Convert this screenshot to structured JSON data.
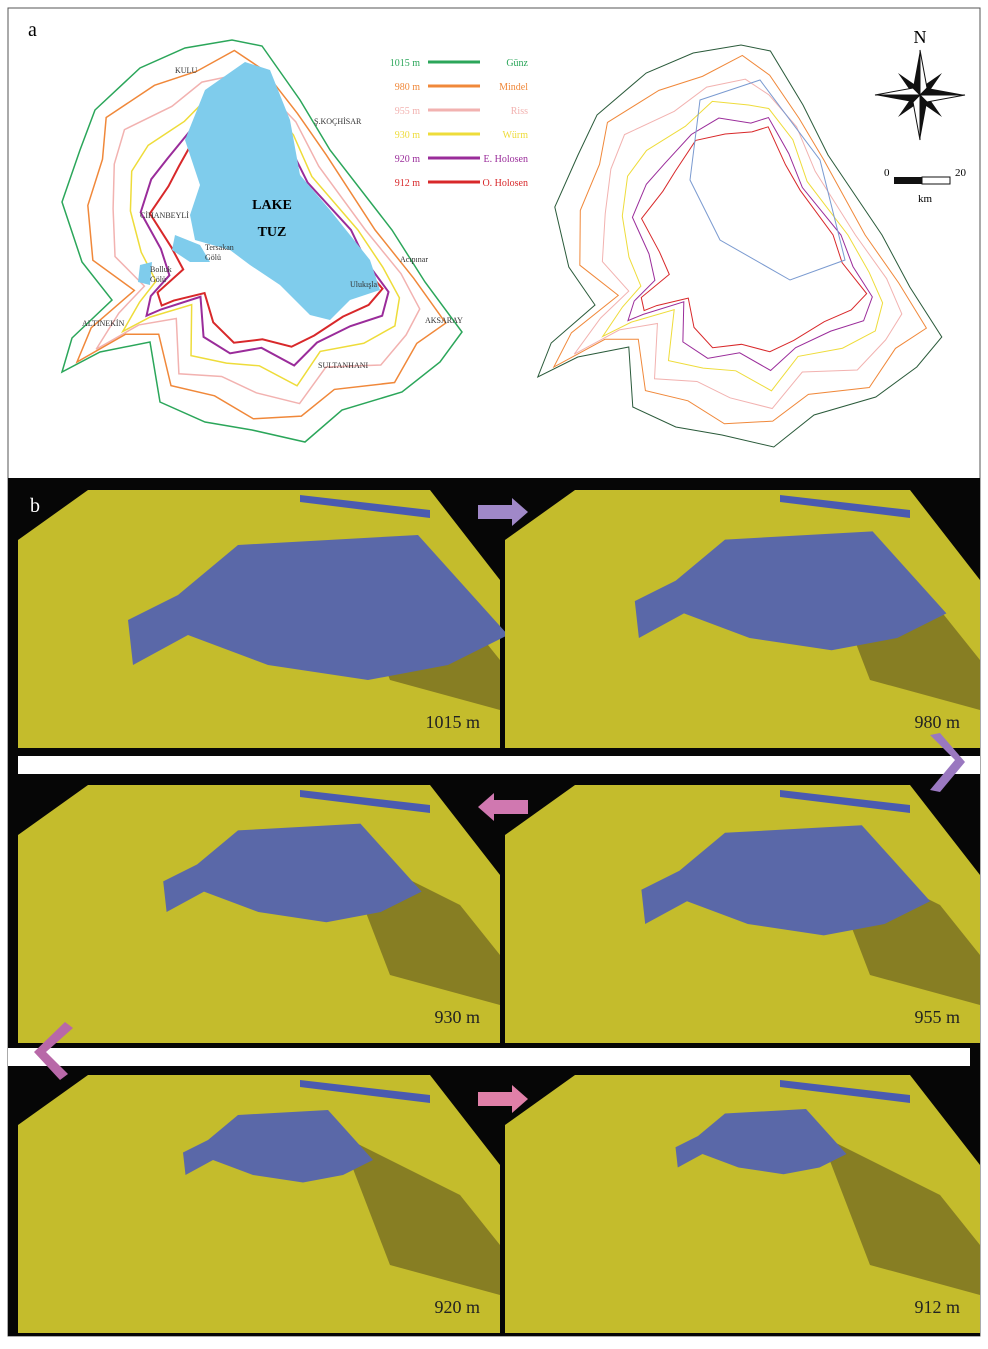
{
  "panel_a": {
    "label": "a",
    "lake_label": [
      "LAKE",
      "TUZ"
    ],
    "places": [
      "KULU",
      "Ş.KOÇHİSAR",
      "CİHANBEYLİ",
      "Tersakan",
      "Gölü",
      "Bolluk",
      "Gölü",
      "ALTINEKİN",
      "Acıpınar",
      "Ulukışla",
      "AKSARAY",
      "SULTANHANI"
    ],
    "legend": [
      {
        "level": "1015 m",
        "name": "Günz",
        "color": "#2ba65a"
      },
      {
        "level": "980 m",
        "name": "Mindel",
        "color": "#f0883a"
      },
      {
        "level": "955 m",
        "name": "Riss",
        "color": "#f2b2b0"
      },
      {
        "level": "930 m",
        "name": "Würm",
        "color": "#eedc3a"
      },
      {
        "level": "920 m",
        "name": "E. Holosen",
        "color": "#9a2c9a"
      },
      {
        "level": "912 m",
        "name": "O. Holosen",
        "color": "#d8282a"
      }
    ],
    "compass": "N",
    "scale": {
      "start": 0,
      "end": 20,
      "unit": "km"
    }
  },
  "panel_b": {
    "label": "b",
    "frames": [
      "1015 m",
      "980 m",
      "930 m",
      "955 m",
      "920 m",
      "912 m"
    ]
  }
}
